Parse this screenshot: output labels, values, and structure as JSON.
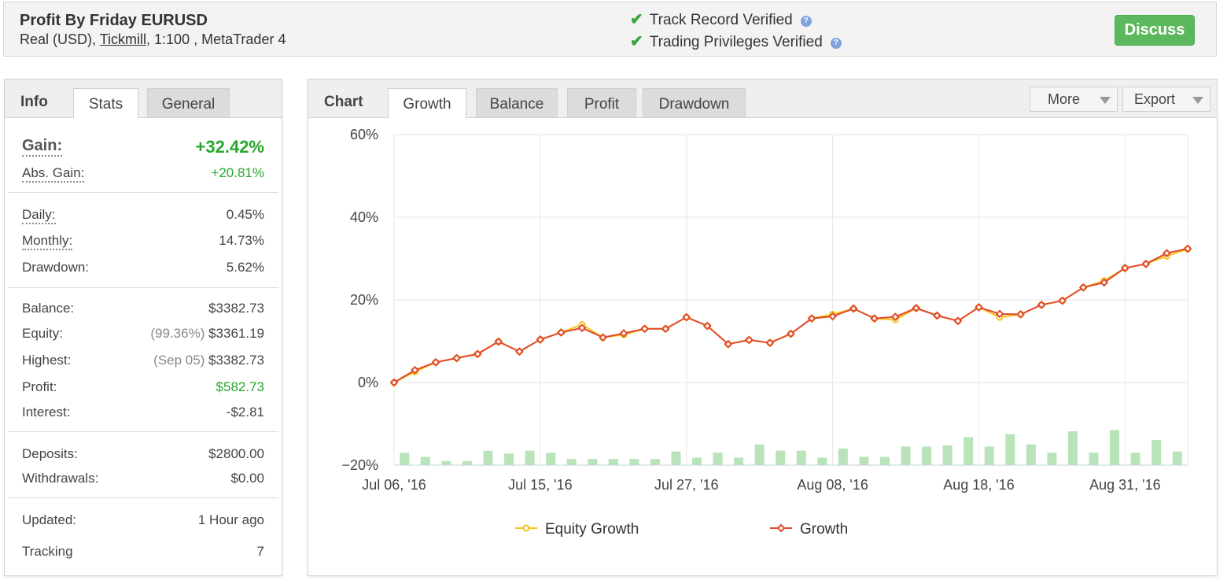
{
  "header": {
    "title": "Profit By Friday EURUSD",
    "account_type": "Real (USD),",
    "broker": "Tickmill",
    "details": ", 1:100 , MetaTrader 4",
    "verifications": [
      "Track Record Verified",
      "Trading Privileges Verified"
    ],
    "discuss_label": "Discuss",
    "help_glyph": "?"
  },
  "stats_panel": {
    "heading": "Info",
    "tabs": [
      "Stats",
      "General"
    ],
    "gain": {
      "label": "Gain:",
      "value": "+32.42%"
    },
    "abs_gain": {
      "label": "Abs. Gain:",
      "value": "+20.81%"
    },
    "daily": {
      "label": "Daily:",
      "value": "0.45%"
    },
    "monthly": {
      "label": "Monthly:",
      "value": "14.73%"
    },
    "drawdown": {
      "label": "Drawdown:",
      "value": "5.62%"
    },
    "balance": {
      "label": "Balance:",
      "value": "$3382.73"
    },
    "equity": {
      "label": "Equity:",
      "note": "(99.36%)",
      "value": "$3361.19"
    },
    "highest": {
      "label": "Highest:",
      "note": "(Sep 05)",
      "value": "$3382.73"
    },
    "profit": {
      "label": "Profit:",
      "value": "$582.73"
    },
    "interest": {
      "label": "Interest:",
      "value": "-$2.81"
    },
    "deposits": {
      "label": "Deposits:",
      "value": "$2800.00"
    },
    "withdrawals": {
      "label": "Withdrawals:",
      "value": "$0.00"
    },
    "updated": {
      "label": "Updated:",
      "value": "1 Hour ago"
    },
    "tracking": {
      "label": "Tracking",
      "value": "7"
    }
  },
  "chart_panel": {
    "heading": "Chart",
    "tabs": [
      "Growth",
      "Balance",
      "Profit",
      "Drawdown"
    ],
    "more_label": "More",
    "export_label": "Export"
  },
  "colors": {
    "growth": "#e04a2b",
    "equity_growth": "#f5c21b",
    "bars": "#b9e3b9",
    "grid": "#e6e6e6",
    "discuss": "#5cb85c",
    "positive": "#27a82b"
  },
  "chart_data": {
    "type": "line",
    "x_labels": [
      "Jul 06, '16",
      "Jul 15, '16",
      "Jul 27, '16",
      "Aug 08, '16",
      "Aug 18, '16",
      "Aug 31, '16"
    ],
    "x_label_index": [
      0,
      7,
      14,
      21,
      28,
      35
    ],
    "y_ticks": [
      "60%",
      "40%",
      "20%",
      "0%",
      "−20%"
    ],
    "ylim": [
      -20,
      60
    ],
    "grid": true,
    "legend_position": "bottom",
    "series": [
      {
        "name": "Growth",
        "values": [
          0.0,
          3.0,
          4.9,
          5.9,
          6.9,
          9.9,
          7.5,
          10.4,
          12.1,
          13.2,
          10.9,
          11.9,
          13.0,
          13.0,
          15.8,
          13.7,
          9.3,
          10.3,
          9.6,
          11.8,
          15.5,
          16.0,
          17.9,
          15.5,
          15.9,
          18.0,
          16.2,
          14.9,
          18.2,
          16.6,
          16.5,
          18.8,
          19.8,
          23.0,
          24.2,
          27.7,
          28.7,
          31.3,
          32.4
        ]
      },
      {
        "name": "Equity Growth",
        "values": [
          0.0,
          2.6,
          4.9,
          5.9,
          6.9,
          9.9,
          7.5,
          10.4,
          12.1,
          14.0,
          10.9,
          11.6,
          13.0,
          13.0,
          15.8,
          13.7,
          9.3,
          10.3,
          9.6,
          11.8,
          15.5,
          16.5,
          17.9,
          15.5,
          15.2,
          18.0,
          16.2,
          14.9,
          18.2,
          15.8,
          16.5,
          18.8,
          19.8,
          23.0,
          24.6,
          27.7,
          28.7,
          30.6,
          32.3
        ]
      }
    ],
    "bars": [
      3.0,
      2.0,
      1.0,
      1.0,
      3.5,
      2.8,
      3.5,
      3.0,
      1.5,
      1.5,
      1.5,
      1.5,
      1.5,
      3.3,
      1.8,
      3.0,
      1.8,
      5.0,
      3.5,
      3.5,
      1.8,
      4.0,
      2.0,
      2.0,
      4.5,
      4.5,
      4.8,
      6.8,
      4.5,
      7.5,
      5.0,
      3.0,
      8.2,
      3.0,
      8.5,
      3.0,
      6.1,
      3.3
    ]
  }
}
